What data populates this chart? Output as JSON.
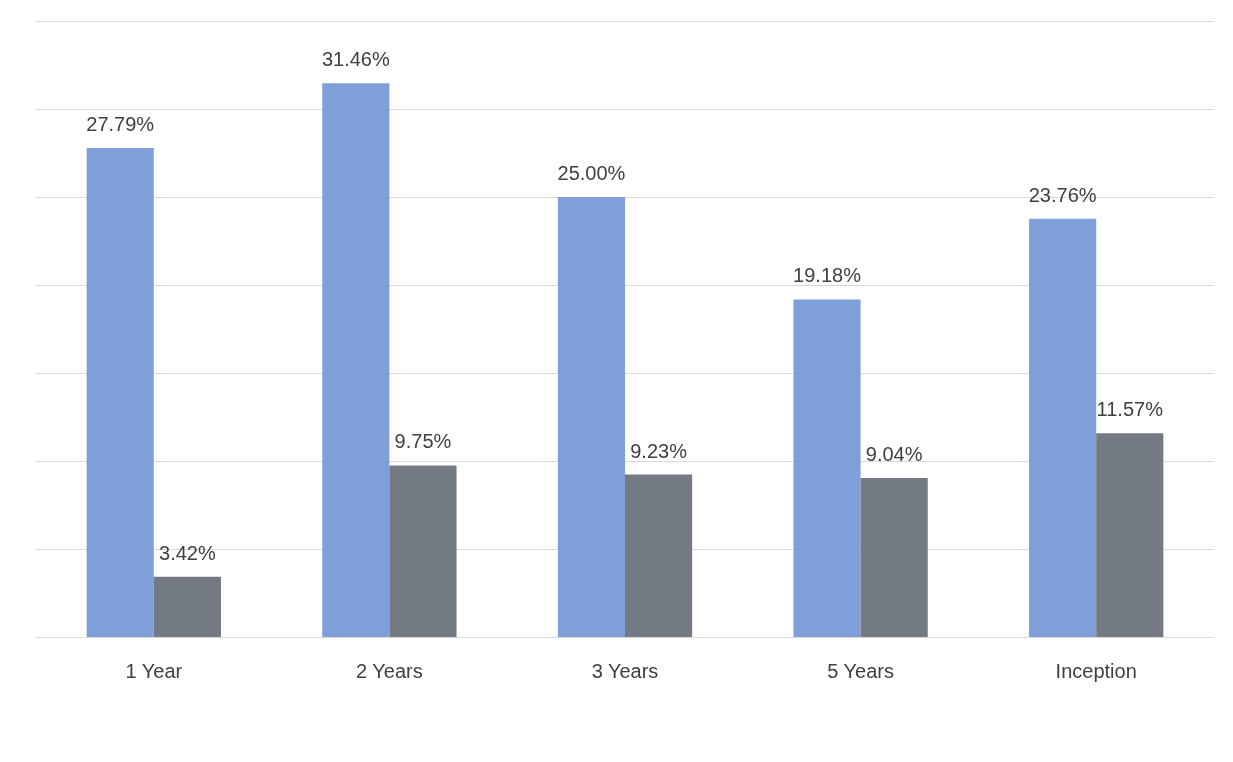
{
  "chart_data": {
    "type": "bar",
    "categories": [
      "1 Year",
      "2 Years",
      "3 Years",
      "5 Years",
      "Inception"
    ],
    "series": [
      {
        "color": "#7f9fd8",
        "values": [
          27.79,
          31.46,
          25.0,
          19.18,
          23.76
        ],
        "value_labels": [
          "27.79%",
          "31.46%",
          "25.00%",
          "19.18%",
          "23.76%"
        ]
      },
      {
        "color": "#737a84",
        "values": [
          3.42,
          9.75,
          9.23,
          9.04,
          11.57
        ],
        "value_labels": [
          "3.42%",
          "9.75%",
          "9.23%",
          "9.04%",
          "11.57%"
        ]
      }
    ],
    "ylim": [
      0,
      35
    ],
    "yticks": [
      {
        "value": 0,
        "label": null
      },
      {
        "value": 5,
        "label": null
      },
      {
        "value": 10,
        "label": null
      },
      {
        "value": 15,
        "label": null
      },
      {
        "value": 20,
        "label": null
      },
      {
        "value": 25,
        "label": null
      },
      {
        "value": 30,
        "label": null
      },
      {
        "value": 35,
        "label": null
      }
    ],
    "tick_labels": "x",
    "grid": "y"
  }
}
